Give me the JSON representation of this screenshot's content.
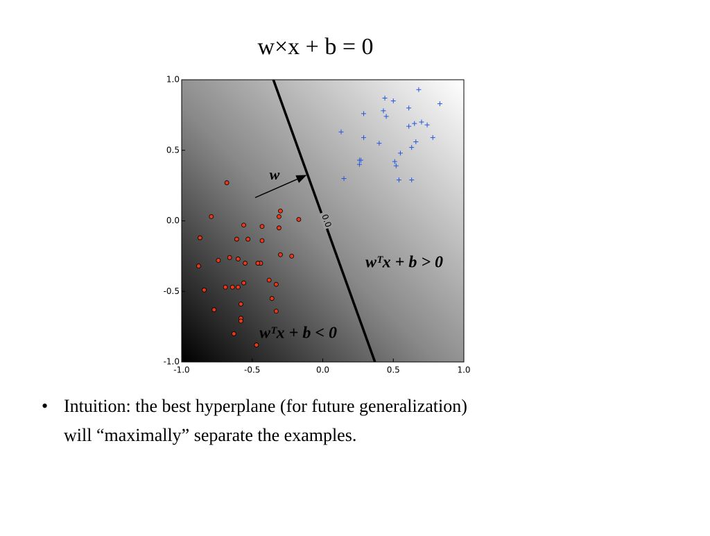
{
  "title": "w×x + b = 0",
  "bullet": [
    "Intuition:  the best hyperplane (for future generalization)",
    "will “maximally” separate the examples."
  ],
  "chart_data": {
    "type": "scatter",
    "xlim": [
      -1,
      1
    ],
    "ylim": [
      -1,
      1
    ],
    "xticks": [
      {
        "value": -1,
        "label": "-1.0"
      },
      {
        "value": -0.5,
        "label": "-0.5"
      },
      {
        "value": 0,
        "label": "0.0"
      },
      {
        "value": 0.5,
        "label": "0.5"
      },
      {
        "value": 1,
        "label": "1.0"
      }
    ],
    "yticks": [
      {
        "value": -1,
        "label": "-1.0"
      },
      {
        "value": -0.5,
        "label": "-0.5"
      },
      {
        "value": 0,
        "label": "0.0"
      },
      {
        "value": 0.5,
        "label": "0.5"
      },
      {
        "value": 1,
        "label": "1.0"
      }
    ],
    "series": [
      {
        "color": "#e8381a",
        "marker": "circle",
        "x": [
          -0.68,
          -0.79,
          -0.87,
          -0.88,
          -0.84,
          -0.77,
          -0.74,
          -0.66,
          -0.6,
          -0.55,
          -0.61,
          -0.56,
          -0.53,
          -0.43,
          -0.43,
          -0.44,
          -0.46,
          -0.56,
          -0.6,
          -0.64,
          -0.69,
          -0.58,
          -0.58,
          -0.58,
          -0.63,
          -0.47,
          -0.38,
          -0.36,
          -0.33,
          -0.33,
          -0.31,
          -0.3,
          -0.31,
          -0.3,
          -0.22,
          -0.17
        ],
        "values": [
          0.27,
          0.03,
          -0.12,
          -0.32,
          -0.49,
          -0.63,
          -0.28,
          -0.26,
          -0.27,
          -0.3,
          -0.13,
          -0.03,
          -0.13,
          -0.04,
          -0.14,
          -0.3,
          -0.3,
          -0.44,
          -0.47,
          -0.47,
          -0.47,
          -0.59,
          -0.69,
          -0.71,
          -0.8,
          -0.88,
          -0.42,
          -0.55,
          -0.45,
          -0.64,
          0.03,
          0.07,
          -0.05,
          -0.24,
          -0.25,
          0.01
        ]
      },
      {
        "color": "#2255dd",
        "marker": "plus",
        "x": [
          0.68,
          0.44,
          0.5,
          0.83,
          0.61,
          0.29,
          0.43,
          0.45,
          0.65,
          0.7,
          0.74,
          0.61,
          0.13,
          0.29,
          0.78,
          0.66,
          0.4,
          0.63,
          0.55,
          0.26,
          0.27,
          0.26,
          0.51,
          0.52,
          0.15,
          0.54,
          0.63
        ],
        "values": [
          0.93,
          0.87,
          0.85,
          0.83,
          0.8,
          0.76,
          0.78,
          0.74,
          0.69,
          0.7,
          0.68,
          0.67,
          0.63,
          0.59,
          0.59,
          0.56,
          0.55,
          0.52,
          0.48,
          0.43,
          0.43,
          0.4,
          0.42,
          0.39,
          0.3,
          0.29,
          0.29
        ]
      }
    ],
    "boundary": {
      "x": [
        -0.35,
        0.37
      ],
      "values": [
        1,
        -1
      ],
      "label": "0.0"
    },
    "annotations": [
      "w",
      "wᵀx + b > 0",
      "wᵀx + b < 0"
    ]
  }
}
